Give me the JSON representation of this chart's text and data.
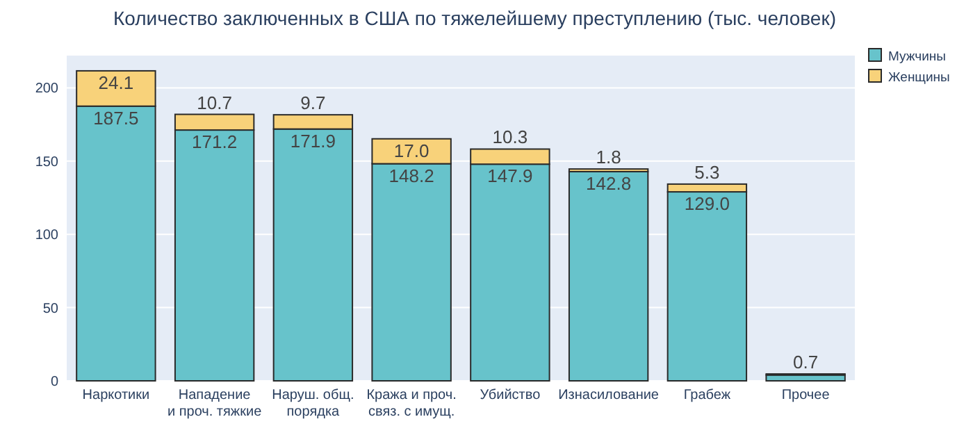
{
  "chart_data": {
    "type": "bar",
    "stacked": true,
    "title": "Количество заключенных в США по тяжелейшему преступлению (тыс. человек)",
    "categories": [
      "Наркотики",
      "Нападение\nи проч. тяжкие",
      "Наруш. общ.\nпорядка",
      "Кража и проч.\nсвяз. с имущ.",
      "Убийство",
      "Изнасилование",
      "Грабеж",
      "Прочее"
    ],
    "series": [
      {
        "name": "Мужчины",
        "color": "#67c3cb",
        "values": [
          187.5,
          171.2,
          171.9,
          148.2,
          147.9,
          142.8,
          129.0,
          4
        ],
        "value_labels": [
          "187.5",
          "171.2",
          "171.9",
          "148.2",
          "147.9",
          "142.8",
          "129.0",
          null
        ]
      },
      {
        "name": "Женщины",
        "color": "#f8d27a",
        "values": [
          24.1,
          10.7,
          9.7,
          17.0,
          10.3,
          1.8,
          5.3,
          0.7
        ],
        "value_labels": [
          "24.1",
          "10.7",
          "9.7",
          "17.0",
          "10.3",
          "1.8",
          "5.3",
          "0.7"
        ]
      }
    ],
    "ylim": [
      0,
      222
    ],
    "yticks": [
      0,
      50,
      100,
      150,
      200
    ],
    "grid": "y",
    "legend": "top right"
  }
}
